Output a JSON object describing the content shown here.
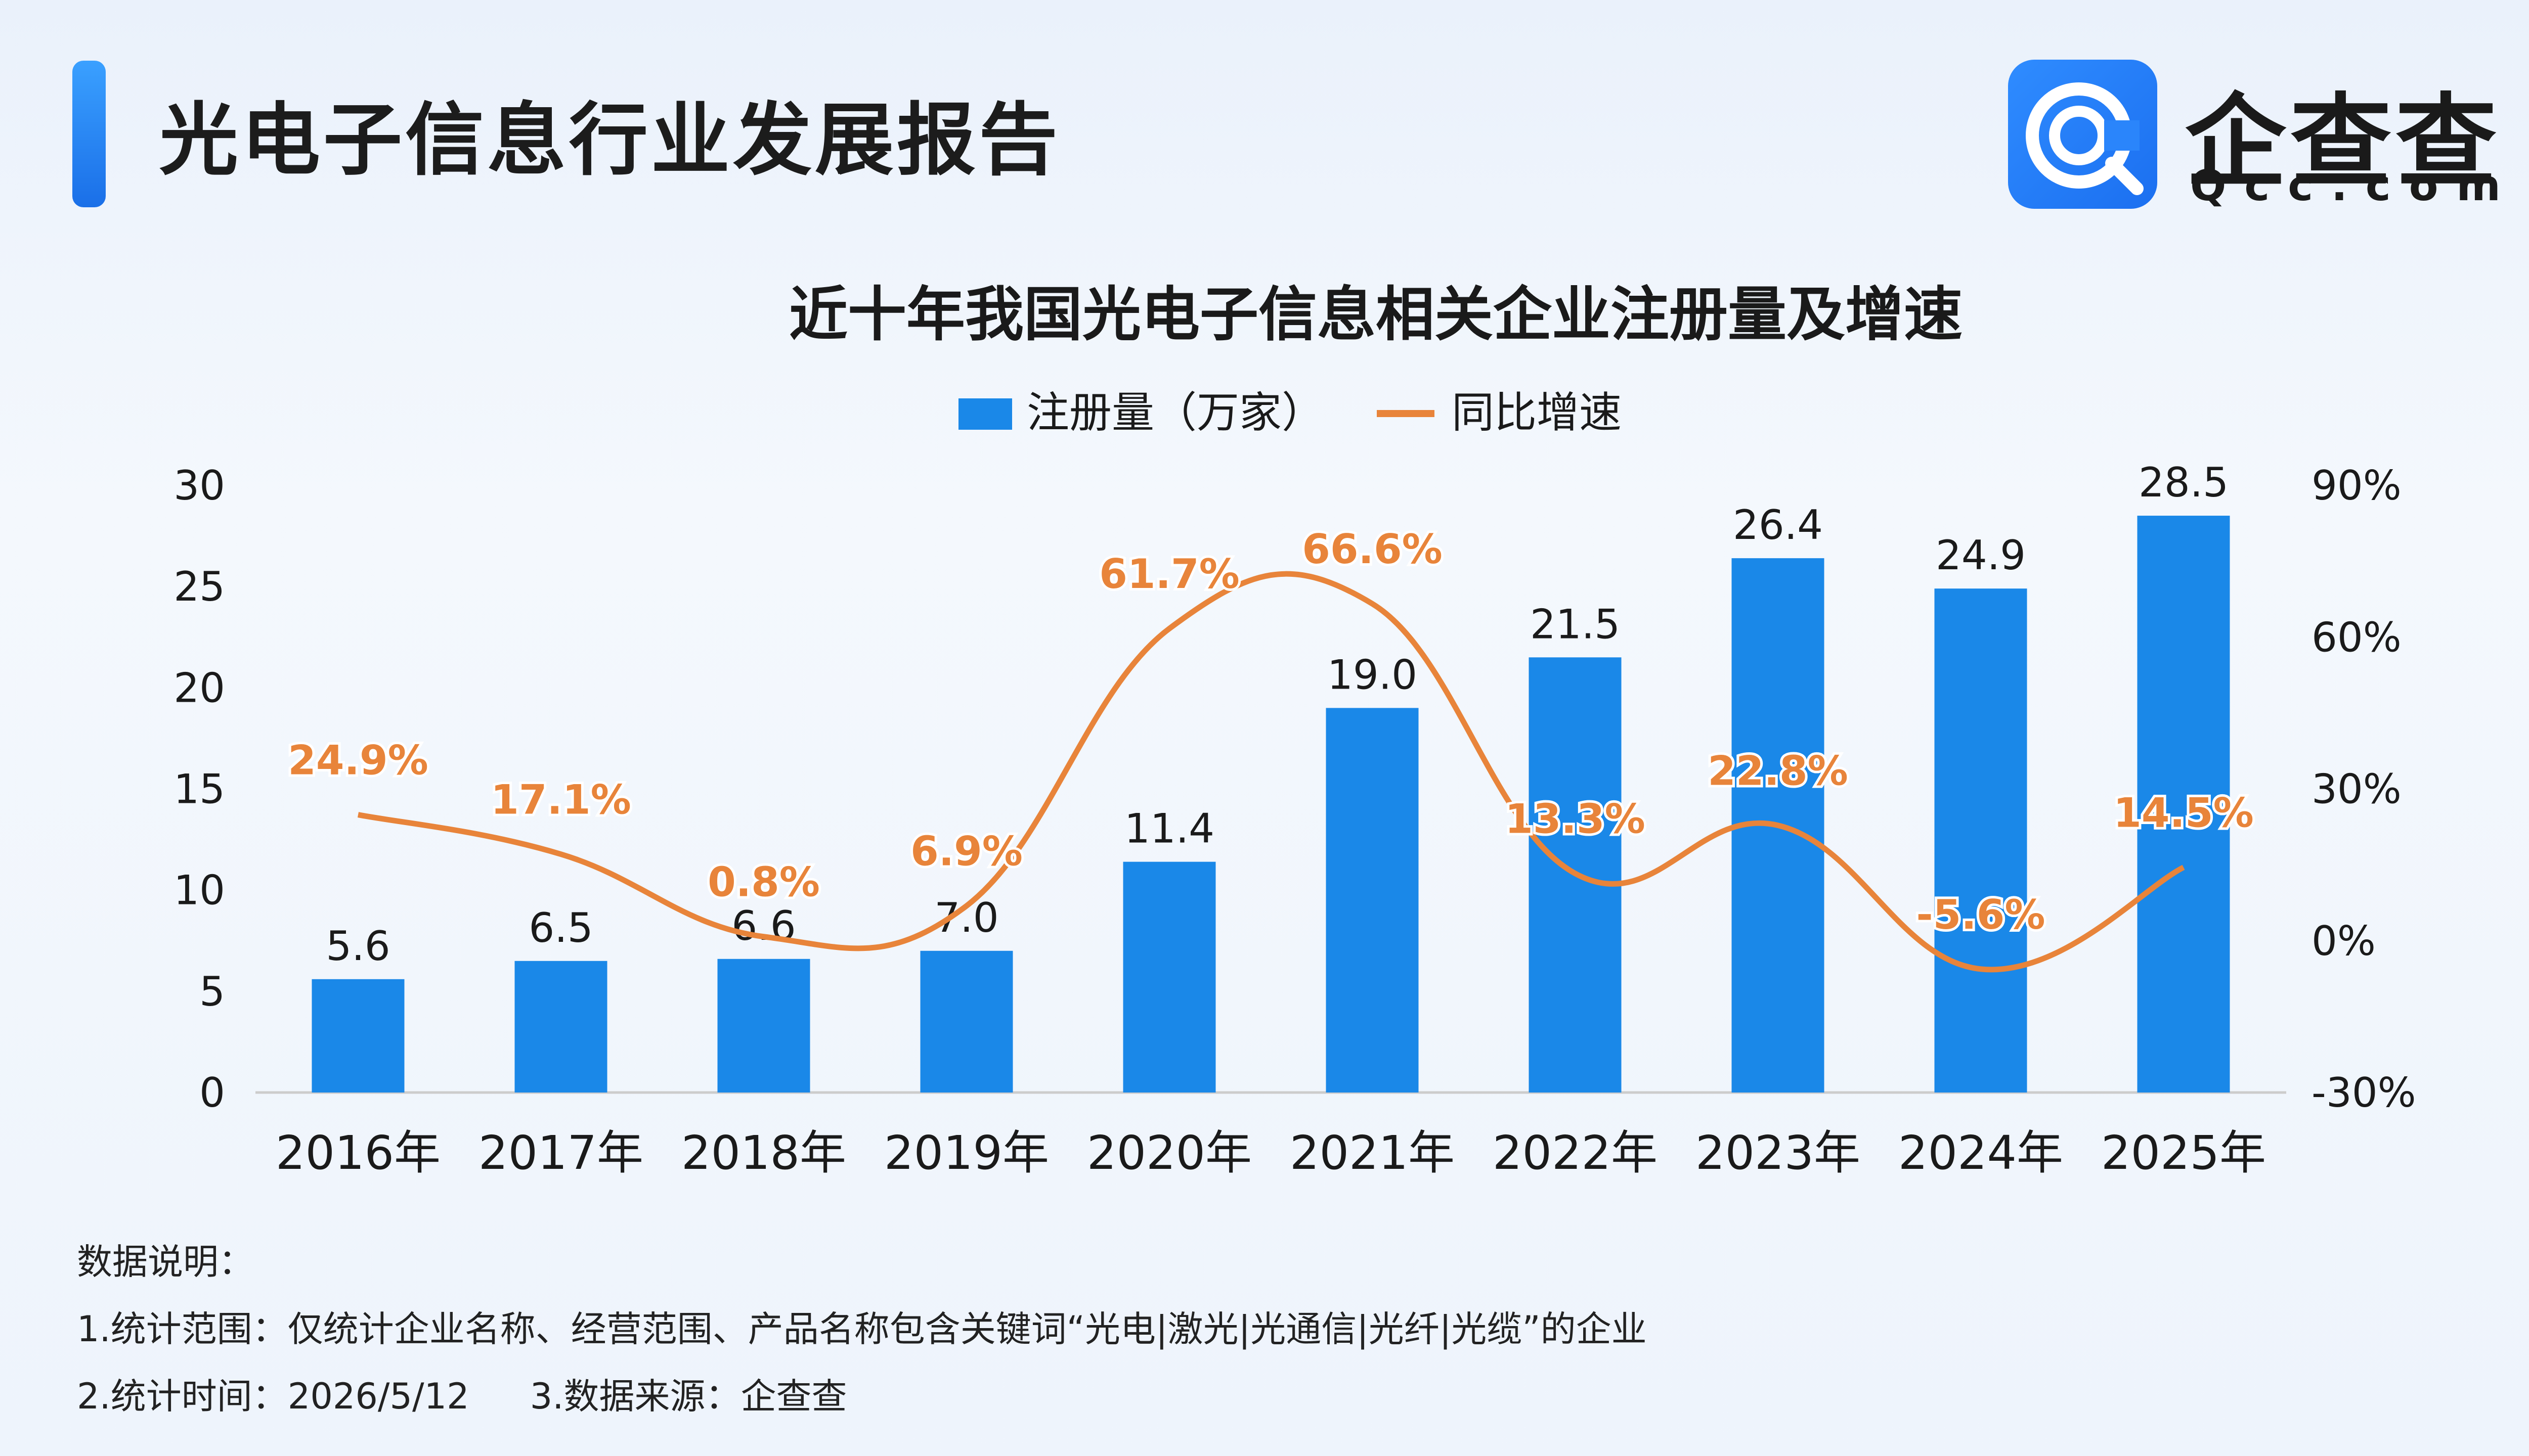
{
  "header": {
    "title": "光电子信息行业发展报告",
    "logo_name": "企查查",
    "logo_domain": "Qcc.com"
  },
  "notes": {
    "heading": "数据说明：",
    "line1": "1.统计范围：仅统计企业名称、经营范围、产品名称包含关键词“光电|激光|光通信|光纤|光缆”的企业",
    "line2a": "2.统计时间：2026/5/12",
    "line2b": "3.数据来源：企查查"
  },
  "colors": {
    "bar": "#1a88e8",
    "line": "#e8843a",
    "accent": "#1a6fe8"
  },
  "chart_data": {
    "type": "bar",
    "title": "近十年我国光电子信息相关企业注册量及增速",
    "categories": [
      "2016年",
      "2017年",
      "2018年",
      "2019年",
      "2020年",
      "2021年",
      "2022年",
      "2023年",
      "2024年",
      "2025年"
    ],
    "series": [
      {
        "name": "注册量（万家）",
        "type": "bar",
        "axis": "left",
        "values": [
          5.6,
          6.5,
          6.6,
          7.0,
          11.4,
          19.0,
          21.5,
          26.4,
          24.9,
          28.5
        ],
        "labels": [
          "5.6",
          "6.5",
          "6.6",
          "7.0",
          "11.4",
          "19.0",
          "21.5",
          "26.4",
          "24.9",
          "28.5"
        ]
      },
      {
        "name": "同比增速",
        "type": "line",
        "axis": "right",
        "values": [
          24.9,
          17.1,
          0.8,
          6.9,
          61.7,
          66.6,
          13.3,
          22.8,
          -5.6,
          14.5
        ],
        "labels": [
          "24.9%",
          "17.1%",
          "0.8%",
          "6.9%",
          "61.7%",
          "66.6%",
          "13.3%",
          "22.8%",
          "-5.6%",
          "14.5%"
        ]
      }
    ],
    "y_left": {
      "ylim": [
        0,
        30
      ],
      "ticks": [
        "0",
        "5",
        "10",
        "15",
        "20",
        "25",
        "30"
      ],
      "values": [
        0,
        5,
        10,
        15,
        20,
        25,
        30
      ]
    },
    "y_right": {
      "ylim": [
        -30,
        90
      ],
      "ticks": [
        "-30%",
        "0%",
        "30%",
        "60%",
        "90%"
      ],
      "values": [
        -30,
        0,
        30,
        60,
        90
      ]
    },
    "legend_position": "top-center",
    "grid": false
  }
}
